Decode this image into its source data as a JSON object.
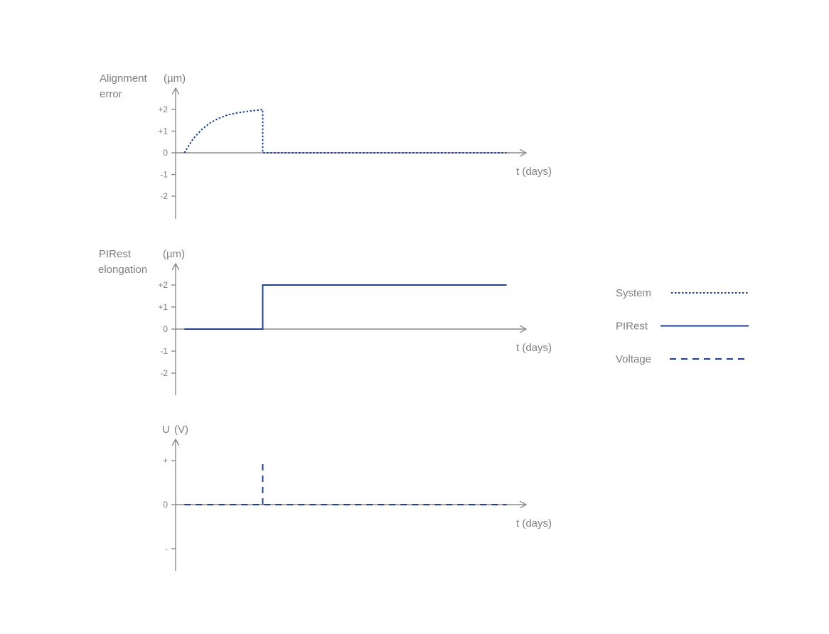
{
  "colors": {
    "axis": "#8c8c8c",
    "text": "#7f7f7f",
    "series": "#1f3f8f"
  },
  "chart_data": [
    {
      "type": "line",
      "ylabel_line1": "Alignment",
      "ylabel_line2": "error",
      "yunit": "(µm)",
      "xlabel": "t (days)",
      "ylim": [
        -3,
        3
      ],
      "yticks": [
        {
          "value": 2,
          "label": "+2"
        },
        {
          "value": 1,
          "label": "+1"
        },
        {
          "value": 0,
          "label": "0"
        },
        {
          "value": -1,
          "label": "-1"
        },
        {
          "value": -2,
          "label": "-2"
        }
      ],
      "series": [
        {
          "name": "System",
          "style": "dotted",
          "points": [
            [
              0.5,
              0
            ],
            [
              1,
              0.64
            ],
            [
              1.5,
              1.08
            ],
            [
              2,
              1.39
            ],
            [
              2.5,
              1.6
            ],
            [
              3,
              1.75
            ],
            [
              3.5,
              1.84
            ],
            [
              4,
              1.9
            ],
            [
              4.5,
              1.95
            ],
            [
              4.8,
              1.97
            ],
            [
              5,
              2
            ],
            [
              5,
              0
            ],
            [
              19,
              0
            ]
          ]
        }
      ]
    },
    {
      "type": "line",
      "ylabel_line1": "PIRest",
      "ylabel_line2": "elongation",
      "yunit": "(µm)",
      "xlabel": "t (days)",
      "ylim": [
        -3,
        3
      ],
      "yticks": [
        {
          "value": 2,
          "label": "+2"
        },
        {
          "value": 1,
          "label": "+1"
        },
        {
          "value": 0,
          "label": "0"
        },
        {
          "value": -1,
          "label": "-1"
        },
        {
          "value": -2,
          "label": "-2"
        }
      ],
      "series": [
        {
          "name": "PIRest",
          "style": "solid",
          "points": [
            [
              0.5,
              0
            ],
            [
              5,
              0
            ],
            [
              5,
              2
            ],
            [
              19,
              2
            ]
          ]
        }
      ]
    },
    {
      "type": "line",
      "ylabel_line1": "U",
      "ylabel_line2": "",
      "yunit": "(V)",
      "xlabel": "t (days)",
      "ylim": [
        -1.5,
        1.5
      ],
      "yticks": [
        {
          "value": 1,
          "label": "+"
        },
        {
          "value": 0,
          "label": "0"
        },
        {
          "value": -1,
          "label": "-"
        }
      ],
      "series": [
        {
          "name": "Voltage",
          "style": "dashed",
          "points": [
            [
              0.5,
              0
            ],
            [
              19,
              0
            ]
          ]
        },
        {
          "name": "Voltage",
          "style": "dashed",
          "points": [
            [
              5,
              0
            ],
            [
              5,
              1
            ]
          ]
        }
      ]
    }
  ],
  "legend": {
    "placement": "right",
    "items": [
      {
        "label": "System",
        "style": "dotted"
      },
      {
        "label": "PIRest",
        "style": "solid"
      },
      {
        "label": "Voltage",
        "style": "dashed"
      }
    ]
  }
}
